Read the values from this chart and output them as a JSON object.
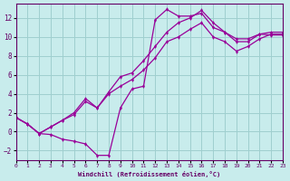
{
  "xlabel": "Windchill (Refroidissement éolien,°C)",
  "bg_color": "#c8ecec",
  "grid_color": "#9fcfcf",
  "line_color": "#990099",
  "xlim": [
    0,
    23
  ],
  "ylim": [
    -3,
    13.5
  ],
  "xticks": [
    0,
    1,
    2,
    3,
    4,
    5,
    6,
    7,
    8,
    9,
    10,
    11,
    12,
    13,
    14,
    15,
    16,
    17,
    18,
    19,
    20,
    21,
    22,
    23
  ],
  "yticks": [
    -2,
    0,
    2,
    4,
    6,
    8,
    10,
    12
  ],
  "line1_x": [
    0,
    1,
    2,
    3,
    4,
    5,
    6,
    7,
    8,
    9,
    10,
    11,
    12,
    13,
    14,
    15,
    16,
    17,
    18,
    19,
    20,
    21,
    22,
    23
  ],
  "line1_y": [
    1.5,
    0.8,
    -0.2,
    -0.3,
    -0.8,
    -1.0,
    -1.3,
    -2.5,
    -2.5,
    2.5,
    4.5,
    4.8,
    11.8,
    12.9,
    12.2,
    12.2,
    12.5,
    11.0,
    10.5,
    9.8,
    9.8,
    10.3,
    10.2,
    10.2
  ],
  "line2_x": [
    0,
    1,
    2,
    3,
    4,
    5,
    6,
    7,
    8,
    9,
    10,
    11,
    12,
    13,
    14,
    15,
    16,
    17,
    18,
    19,
    20,
    21,
    22,
    23
  ],
  "line2_y": [
    1.5,
    0.8,
    -0.2,
    0.5,
    1.2,
    2.0,
    3.5,
    2.5,
    4.2,
    5.8,
    6.2,
    7.5,
    9.0,
    10.5,
    11.5,
    12.0,
    12.8,
    11.5,
    10.5,
    9.5,
    9.5,
    10.3,
    10.5,
    10.5
  ],
  "line3_x": [
    0,
    1,
    2,
    3,
    4,
    5,
    6,
    7,
    8,
    9,
    10,
    11,
    12,
    13,
    14,
    15,
    16,
    17,
    18,
    19,
    20,
    21,
    22,
    23
  ],
  "line3_y": [
    1.5,
    0.8,
    -0.2,
    0.5,
    1.2,
    1.8,
    3.2,
    2.5,
    4.0,
    4.8,
    5.5,
    6.5,
    7.8,
    9.5,
    10.0,
    10.8,
    11.5,
    10.0,
    9.5,
    8.5,
    9.0,
    9.8,
    10.3,
    10.3
  ]
}
